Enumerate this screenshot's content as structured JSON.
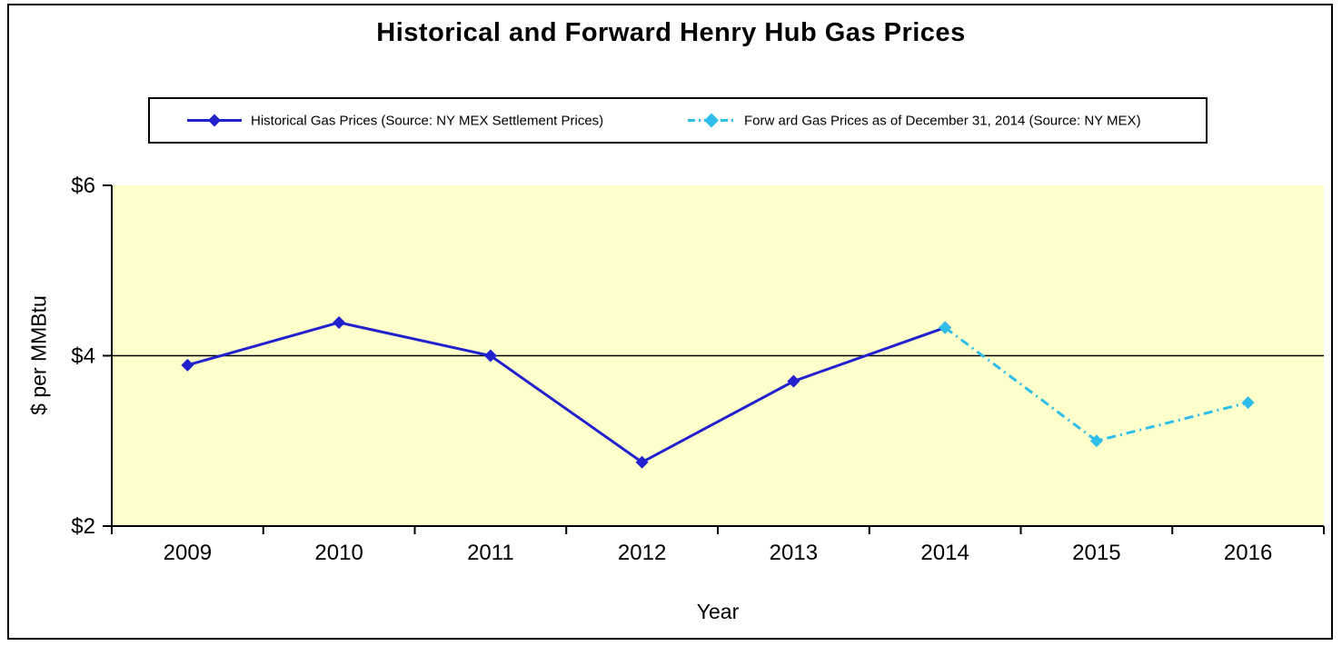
{
  "chart_data": {
    "type": "line",
    "title": "Historical and Forward Henry Hub Gas Prices",
    "xlabel": "Year",
    "ylabel": "$ per MMBtu",
    "categories": [
      "2009",
      "2010",
      "2011",
      "2012",
      "2013",
      "2014",
      "2015",
      "2016"
    ],
    "ylim": [
      2,
      6
    ],
    "yticks": [
      {
        "value": 2,
        "label": "$2"
      },
      {
        "value": 4,
        "label": "$4"
      },
      {
        "value": 6,
        "label": "$6"
      }
    ],
    "gridline_values": [
      4
    ],
    "grid": "horizontal-only",
    "plot_background_color": "#FFFFCC",
    "axis_color": "#000000",
    "legend_position": "top",
    "series": [
      {
        "name": "Historical Gas Prices (Source: NY MEX Settlement Prices)",
        "color": "#2121CE",
        "line_style": "solid",
        "marker": "diamond",
        "x": [
          "2009",
          "2010",
          "2011",
          "2012",
          "2013",
          "2014"
        ],
        "values": [
          3.89,
          4.39,
          4.0,
          2.75,
          3.7,
          4.33
        ]
      },
      {
        "name": "Forw ard Gas Prices as of December 31, 2014 (Source: NY MEX)",
        "color": "#2FBEE9",
        "line_style": "dash-dot",
        "marker": "diamond",
        "x": [
          "2014",
          "2015",
          "2016"
        ],
        "values": [
          4.33,
          3.0,
          3.45
        ]
      }
    ]
  }
}
